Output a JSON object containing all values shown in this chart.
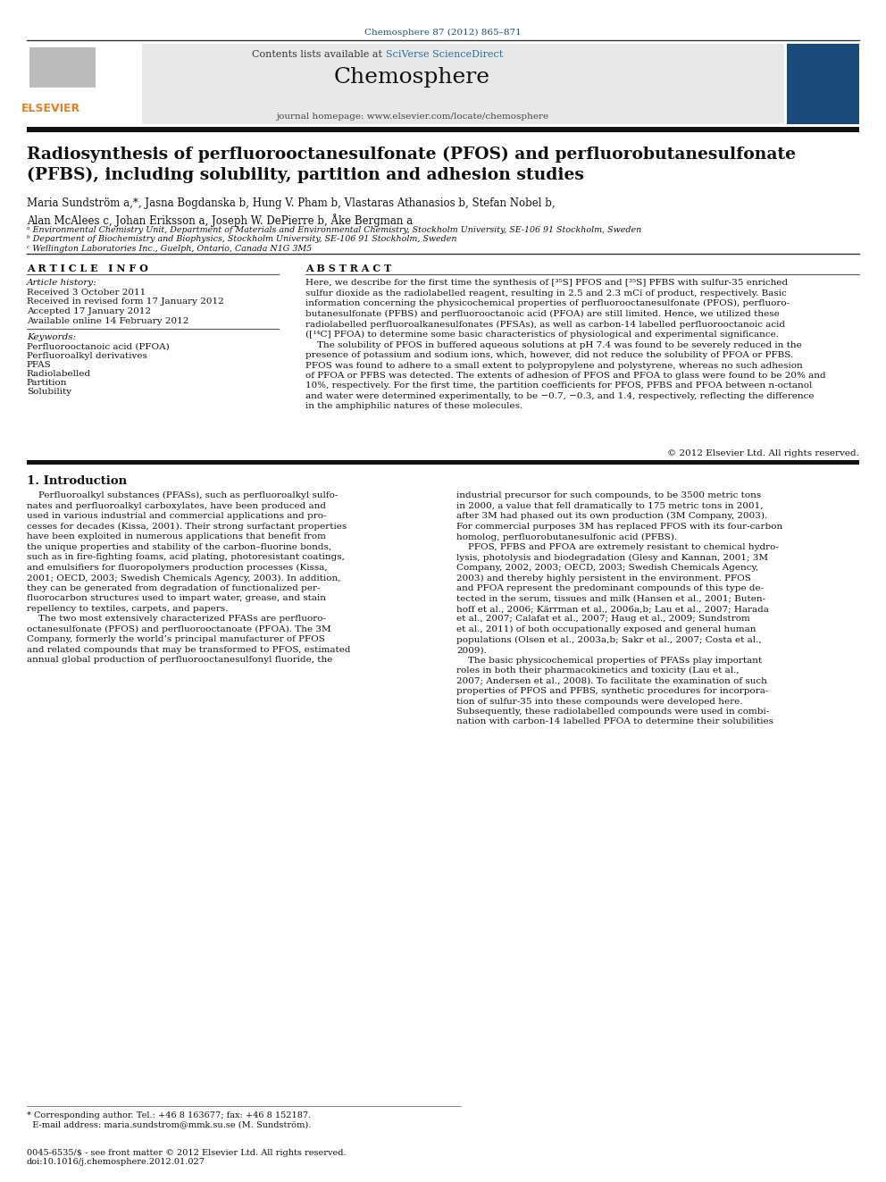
{
  "page_width": 9.92,
  "page_height": 13.23,
  "bg_color": "#ffffff",
  "top_journal_ref": "Chemosphere 87 (2012) 865–871",
  "top_journal_ref_color": "#1a5276",
  "header_bg": "#e8e8e8",
  "header_contents_text": "Contents lists available at ",
  "header_sciverse_text": "SciVerse ScienceDirect",
  "header_journal_name": "Chemosphere",
  "header_homepage_text": "journal homepage: www.elsevier.com/locate/chemosphere",
  "elsevier_color": "#e67e22",
  "article_title": "Radiosynthesis of perfluorooctanesulfonate (PFOS) and perfluorobutanesulfonate\n(PFBS), including solubility, partition and adhesion studies",
  "authors": "Maria Sundström a,*, Jasna Bogdanska b, Hung V. Pham b, Vlastaras Athanasios b, Stefan Nobel b,\nAlan McAlees c, Johan Eriksson a, Joseph W. DePierre b, Åke Bergman a",
  "affil_a": "ᵃ Environmental Chemistry Unit, Department of Materials and Environmental Chemistry, Stockholm University, SE-106 91 Stockholm, Sweden",
  "affil_b": "ᵇ Department of Biochemistry and Biophysics, Stockholm University, SE-106 91 Stockholm, Sweden",
  "affil_c": "ᶜ Wellington Laboratories Inc., Guelph, Ontario, Canada N1G 3M5",
  "article_info_title": "A R T I C L E   I N F O",
  "article_history_label": "Article history:",
  "received": "Received 3 October 2011",
  "received_revised": "Received in revised form 17 January 2012",
  "accepted": "Accepted 17 January 2012",
  "available_online": "Available online 14 February 2012",
  "keywords_label": "Keywords:",
  "keyword1": "Perfluorooctanoic acid (PFOA)",
  "keyword2": "Perfluoroalkyl derivatives",
  "keyword3": "PFAS",
  "keyword4": "Radiolabelled",
  "keyword5": "Partition",
  "keyword6": "Solubility",
  "abstract_title": "A B S T R A C T",
  "abstract_text": "Here, we describe for the first time the synthesis of [³⁵S] PFOS and [³⁵S] PFBS with sulfur-35 enriched\nsulfur dioxide as the radiolabelled reagent, resulting in 2.5 and 2.3 mCi of product, respectively. Basic\ninformation concerning the physicochemical properties of perfluorooctanesulfonate (PFOS), perfluoro-\nbutanesulfonate (PFBS) and perfluorooctanoic acid (PFOA) are still limited. Hence, we utilized these\nradiolabelled perfluoroalkanesulfonates (PFSAs), as well as carbon-14 labelled perfluorooctanoic acid\n([¹⁴C] PFOA) to determine some basic characteristics of physiological and experimental significance.\n    The solubility of PFOS in buffered aqueous solutions at pH 7.4 was found to be severely reduced in the\npresence of potassium and sodium ions, which, however, did not reduce the solubility of PFOA or PFBS.\nPFOS was found to adhere to a small extent to polypropylene and polystyrene, whereas no such adhesion\nof PFOA or PFBS was detected. The extents of adhesion of PFOS and PFOA to glass were found to be 20% and\n10%, respectively. For the first time, the partition coefficients for PFOS, PFBS and PFOA between n-octanol\nand water were determined experimentally, to be −0.7, −0.3, and 1.4, respectively, reflecting the difference\nin the amphiphilic natures of these molecules.",
  "copyright_text": "© 2012 Elsevier Ltd. All rights reserved.",
  "intro_heading": "1. Introduction",
  "intro_col1": "    Perfluoroalkyl substances (PFASs), such as perfluoroalkyl sulfo-\nnates and perfluoroalkyl carboxylates, have been produced and\nused in various industrial and commercial applications and pro-\ncesses for decades (Kissa, 2001). Their strong surfactant properties\nhave been exploited in numerous applications that benefit from\nthe unique properties and stability of the carbon–fluorine bonds,\nsuch as in fire-fighting foams, acid plating, photoresistant coatings,\nand emulsifiers for fluoropolymers production processes (Kissa,\n2001; OECD, 2003; Swedish Chemicals Agency, 2003). In addition,\nthey can be generated from degradation of functionalized per-\nfluorocarbon structures used to impart water, grease, and stain\nrepellency to textiles, carpets, and papers.\n    The two most extensively characterized PFASs are perfluoro-\noctanesulfonate (PFOS) and perfluorooctanoate (PFOA). The 3M\nCompany, formerly the world’s principal manufacturer of PFOS\nand related compounds that may be transformed to PFOS, estimated\nannual global production of perfluorooctanesulfonyl fluoride, the",
  "intro_col2": "industrial precursor for such compounds, to be 3500 metric tons\nin 2000, a value that fell dramatically to 175 metric tons in 2001,\nafter 3M had phased out its own production (3M Company, 2003).\nFor commercial purposes 3M has replaced PFOS with its four-carbon\nhomolog, perfluorobutanesulfonic acid (PFBS).\n    PFOS, PFBS and PFOA are extremely resistant to chemical hydro-\nlysis, photolysis and biodegradation (Glesy and Kannan, 2001; 3M\nCompany, 2002, 2003; OECD, 2003; Swedish Chemicals Agency,\n2003) and thereby highly persistent in the environment. PFOS\nand PFOA represent the predominant compounds of this type de-\ntected in the serum, tissues and milk (Hansen et al., 2001; Buten-\nhoff et al., 2006; Kärrman et al., 2006a,b; Lau et al., 2007; Harada\net al., 2007; Calafat et al., 2007; Haug et al., 2009; Sundstrom\net al., 2011) of both occupationally exposed and general human\npopulations (Olsen et al., 2003a,b; Sakr et al., 2007; Costa et al.,\n2009).\n    The basic physicochemical properties of PFASs play important\nroles in both their pharmacokinetics and toxicity (Lau et al.,\n2007; Andersen et al., 2008). To facilitate the examination of such\nproperties of PFOS and PFBS, synthetic procedures for incorpora-\ntion of sulfur-35 into these compounds were developed here.\nSubsequently, these radiolabelled compounds were used in combi-\nnation with carbon-14 labelled PFOA to determine their solubilities",
  "footnote_text": "* Corresponding author. Tel.: +46 8 163677; fax: +46 8 152187.\n  E-mail address: maria.sundstrom@mmk.su.se (M. Sundström).",
  "issn_text": "0045-6535/$ - see front matter © 2012 Elsevier Ltd. All rights reserved.\ndoi:10.1016/j.chemosphere.2012.01.027"
}
